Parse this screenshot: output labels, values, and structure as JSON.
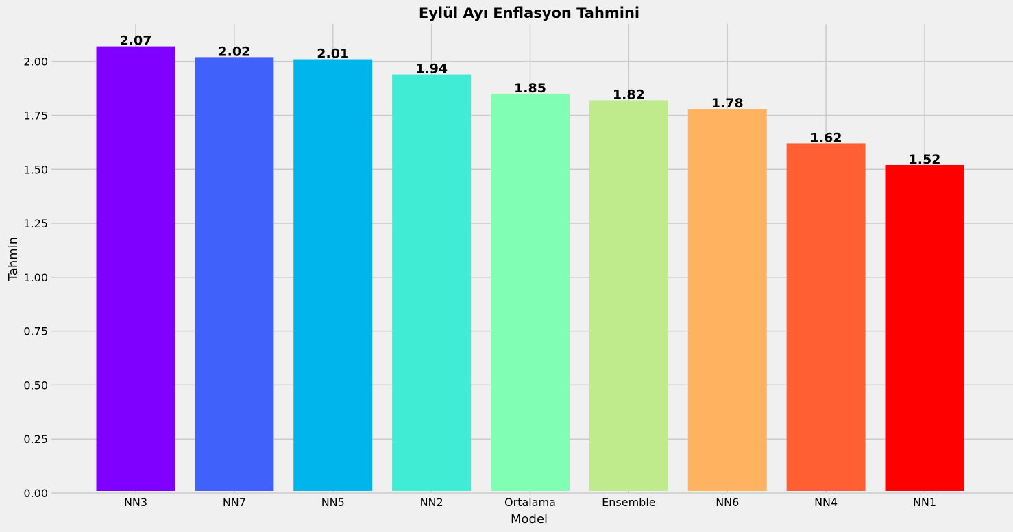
{
  "chart_data": {
    "type": "bar",
    "title": "Eylül Ayı Enflasyon Tahmini",
    "xlabel": "Model",
    "ylabel": "Tahmin",
    "categories": [
      "NN3",
      "NN7",
      "NN5",
      "NN2",
      "Ortalama",
      "Ensemble",
      "NN6",
      "NN4",
      "NN1"
    ],
    "values": [
      2.07,
      2.02,
      2.01,
      1.94,
      1.85,
      1.82,
      1.78,
      1.62,
      1.52
    ],
    "value_labels": [
      "2.07",
      "2.02",
      "2.01",
      "1.94",
      "1.85",
      "1.82",
      "1.78",
      "1.62",
      "1.52"
    ],
    "colors": [
      "#8000ff",
      "#4062fa",
      "#00b5eb",
      "#40ecd4",
      "#80ffb4",
      "#c0eb8d",
      "#ffb360",
      "#ff5f33",
      "#ff0000"
    ],
    "yticks": [
      "0.00",
      "0.25",
      "0.50",
      "0.75",
      "1.00",
      "1.25",
      "1.50",
      "1.75",
      "2.00"
    ],
    "ylim": [
      0,
      2.1735
    ],
    "grid": true,
    "background": "#f0f0f0",
    "grid_color": "#cbcbcb"
  }
}
